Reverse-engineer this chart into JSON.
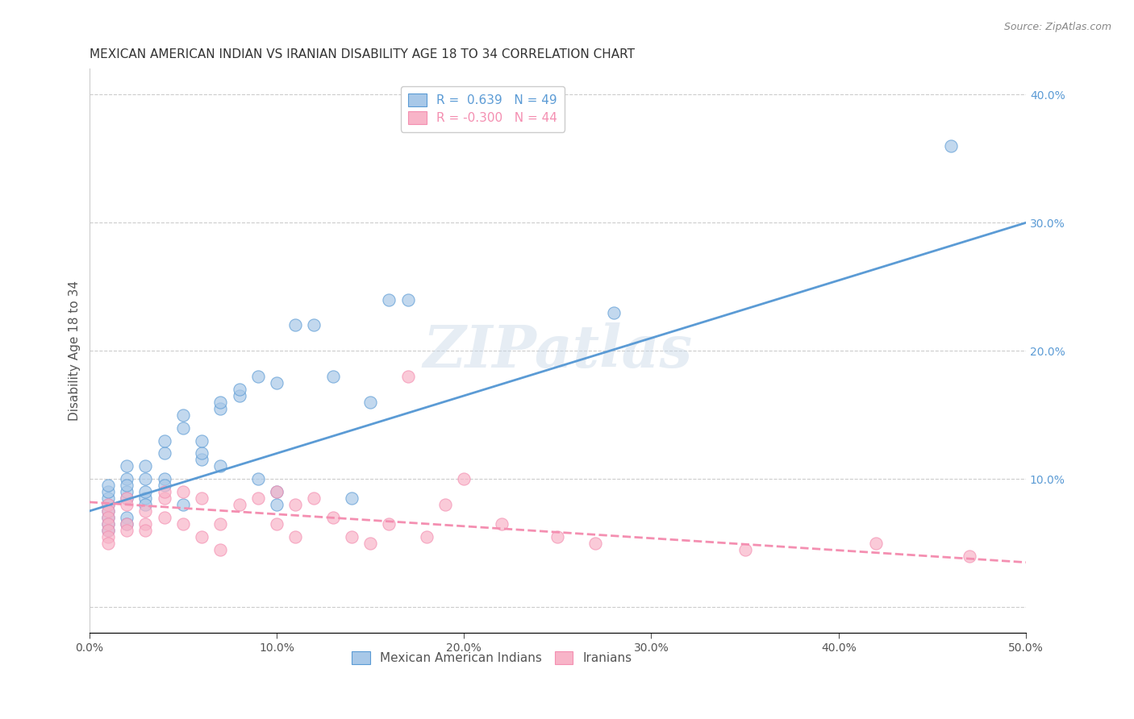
{
  "title": "MEXICAN AMERICAN INDIAN VS IRANIAN DISABILITY AGE 18 TO 34 CORRELATION CHART",
  "source": "Source: ZipAtlas.com",
  "xlabel": "",
  "ylabel": "Disability Age 18 to 34",
  "xlim": [
    0.0,
    0.5
  ],
  "ylim": [
    -0.02,
    0.42
  ],
  "xticks": [
    0.0,
    0.1,
    0.2,
    0.3,
    0.4,
    0.5
  ],
  "yticks": [
    0.0,
    0.1,
    0.2,
    0.3,
    0.4
  ],
  "xticklabels": [
    "0.0%",
    "10.0%",
    "20.0%",
    "30.0%",
    "40.0%",
    "50.0%"
  ],
  "yticklabels": [
    "",
    "10.0%",
    "20.0%",
    "30.0%",
    "40.0%"
  ],
  "legend_entries": [
    {
      "label": "R =  0.639   N = 49",
      "color": "#a8c4e0"
    },
    {
      "label": "R = -0.300   N = 44",
      "color": "#f0a0b0"
    }
  ],
  "blue_line": {
    "x": [
      0.0,
      0.5
    ],
    "y": [
      0.075,
      0.3
    ]
  },
  "pink_line": {
    "x": [
      0.0,
      0.5
    ],
    "y": [
      0.082,
      0.035
    ]
  },
  "blue_scatter_x": [
    0.01,
    0.01,
    0.01,
    0.01,
    0.01,
    0.01,
    0.01,
    0.01,
    0.02,
    0.02,
    0.02,
    0.02,
    0.02,
    0.02,
    0.02,
    0.03,
    0.03,
    0.03,
    0.03,
    0.03,
    0.04,
    0.04,
    0.04,
    0.04,
    0.05,
    0.05,
    0.05,
    0.06,
    0.06,
    0.06,
    0.07,
    0.07,
    0.07,
    0.08,
    0.08,
    0.09,
    0.09,
    0.1,
    0.1,
    0.1,
    0.11,
    0.12,
    0.13,
    0.14,
    0.15,
    0.16,
    0.17,
    0.28,
    0.46
  ],
  "blue_scatter_y": [
    0.08,
    0.085,
    0.09,
    0.095,
    0.07,
    0.075,
    0.065,
    0.06,
    0.085,
    0.09,
    0.1,
    0.11,
    0.095,
    0.07,
    0.065,
    0.1,
    0.11,
    0.085,
    0.09,
    0.08,
    0.12,
    0.13,
    0.1,
    0.095,
    0.14,
    0.15,
    0.08,
    0.115,
    0.12,
    0.13,
    0.155,
    0.16,
    0.11,
    0.165,
    0.17,
    0.18,
    0.1,
    0.175,
    0.09,
    0.08,
    0.22,
    0.22,
    0.18,
    0.085,
    0.16,
    0.24,
    0.24,
    0.23,
    0.36
  ],
  "pink_scatter_x": [
    0.01,
    0.01,
    0.01,
    0.01,
    0.01,
    0.01,
    0.01,
    0.02,
    0.02,
    0.02,
    0.02,
    0.03,
    0.03,
    0.03,
    0.04,
    0.04,
    0.04,
    0.05,
    0.05,
    0.06,
    0.06,
    0.07,
    0.07,
    0.08,
    0.09,
    0.1,
    0.1,
    0.11,
    0.11,
    0.12,
    0.13,
    0.14,
    0.15,
    0.16,
    0.17,
    0.18,
    0.19,
    0.2,
    0.22,
    0.25,
    0.27,
    0.35,
    0.42,
    0.47
  ],
  "pink_scatter_y": [
    0.08,
    0.075,
    0.07,
    0.065,
    0.06,
    0.055,
    0.05,
    0.085,
    0.08,
    0.065,
    0.06,
    0.075,
    0.065,
    0.06,
    0.085,
    0.09,
    0.07,
    0.09,
    0.065,
    0.085,
    0.055,
    0.065,
    0.045,
    0.08,
    0.085,
    0.065,
    0.09,
    0.08,
    0.055,
    0.085,
    0.07,
    0.055,
    0.05,
    0.065,
    0.18,
    0.055,
    0.08,
    0.1,
    0.065,
    0.055,
    0.05,
    0.045,
    0.05,
    0.04
  ],
  "blue_color": "#5b9bd5",
  "pink_color": "#f48fb1",
  "blue_scatter_color": "#a8c8e8",
  "pink_scatter_color": "#f8b4c8",
  "watermark": "ZIPatlas",
  "background_color": "#ffffff",
  "grid_color": "#cccccc",
  "title_fontsize": 11,
  "axis_label_fontsize": 11,
  "tick_fontsize": 10,
  "legend_fontsize": 11,
  "right_tick_color": "#5b9bd5"
}
